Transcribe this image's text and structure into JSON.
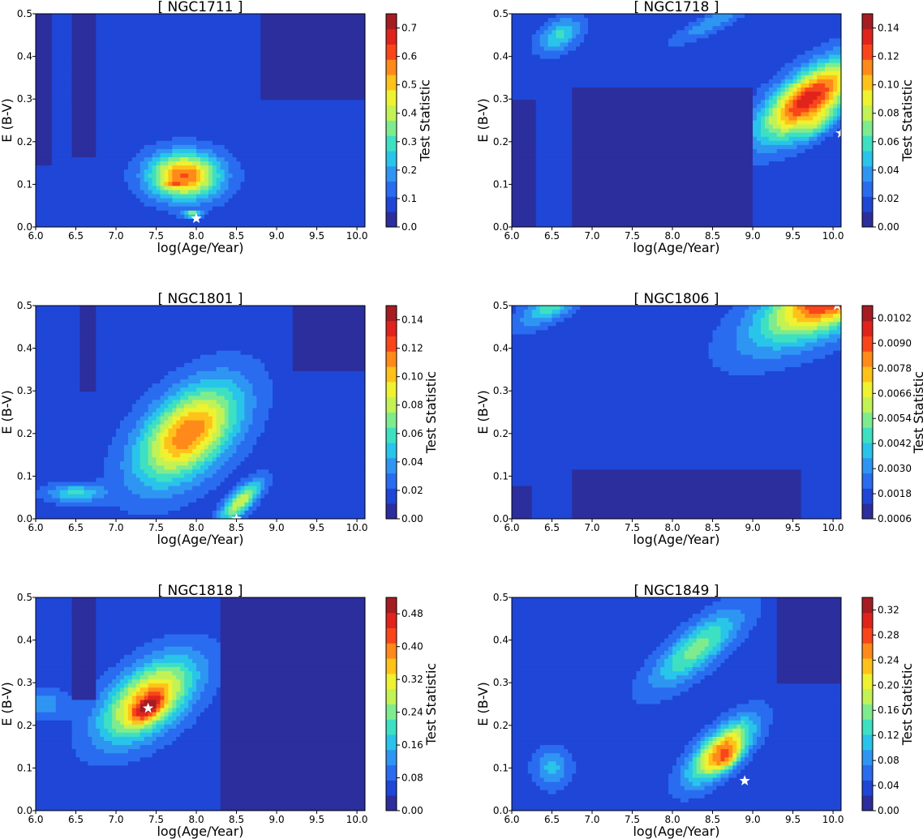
{
  "figure": {
    "common_xlabel": "log(Age/Year)",
    "common_ylabel": "E (B-V)",
    "colorbar_label": "Test Statistic"
  },
  "colormap": [
    "#2b2e9c",
    "#1f46d6",
    "#2a6cf0",
    "#2f95f2",
    "#29c4ea",
    "#3ee0c2",
    "#7eec8e",
    "#c3f255",
    "#eef230",
    "#ffc21a",
    "#ff8a1a",
    "#f8461a",
    "#e0241c",
    "#a51d22"
  ],
  "chart_data": [
    {
      "type": "heatmap",
      "title": "[ NGC1711 ]",
      "xlabel": "log(Age/Year)",
      "ylabel": "E (B-V)",
      "colorbar_label": "Test Statistic",
      "xlim": [
        6.0,
        10.1
      ],
      "ylim": [
        0.0,
        0.5
      ],
      "xticks": [
        6.0,
        6.5,
        7.0,
        7.5,
        8.0,
        8.5,
        9.0,
        9.5,
        10.0
      ],
      "xtick_labels": [
        "6.0",
        "6.5",
        "7.0",
        "7.5",
        "8.0",
        "8.5",
        "9.0",
        "9.5",
        "10.0"
      ],
      "yticks": [
        0.0,
        0.1,
        0.2,
        0.3,
        0.4,
        0.5
      ],
      "ytick_labels": [
        "0.0",
        "0.1",
        "0.2",
        "0.3",
        "0.4",
        "0.5"
      ],
      "cbar_ticks": [
        0.0,
        0.1,
        0.2,
        0.3,
        0.4,
        0.5,
        0.6,
        0.7
      ],
      "cbar_tick_labels": [
        "0.0",
        "0.1",
        "0.2",
        "0.3",
        "0.4",
        "0.5",
        "0.6",
        "0.7"
      ],
      "vmin": 0.0,
      "vmax": 0.75,
      "base_level": 1,
      "blobs": [
        {
          "x": 7.85,
          "y": 0.12,
          "sx": 0.3,
          "sy": 0.3,
          "angle": 60,
          "amp": 0.52
        },
        {
          "x": 7.95,
          "y": 0.03,
          "sx": 0.08,
          "sy": 0.04,
          "angle": 0,
          "amp": 0.3
        },
        {
          "x": 7.7,
          "y": 0.1,
          "sx": 0.08,
          "sy": 0.04,
          "angle": 0,
          "amp": 0.12
        }
      ],
      "dark_regions": [
        {
          "x0": 6.0,
          "x1": 6.2,
          "y0": 0.14,
          "y1": 0.5
        },
        {
          "x0": 6.45,
          "x1": 6.75,
          "y0": 0.16,
          "y1": 0.5
        },
        {
          "x0": 8.8,
          "x1": 10.1,
          "y0": 0.3,
          "y1": 0.5
        }
      ],
      "best_fit": {
        "x": 8.0,
        "y": 0.02
      }
    },
    {
      "type": "heatmap",
      "title": "[ NGC1718 ]",
      "xlabel": "log(Age/Year)",
      "ylabel": "E (B-V)",
      "colorbar_label": "Test Statistic",
      "xlim": [
        6.0,
        10.1
      ],
      "ylim": [
        0.0,
        0.5
      ],
      "xticks": [
        6.0,
        6.5,
        7.0,
        7.5,
        8.0,
        8.5,
        9.0,
        9.5,
        10.0
      ],
      "xtick_labels": [
        "6.0",
        "6.5",
        "7.0",
        "7.5",
        "8.0",
        "8.5",
        "9.0",
        "9.5",
        "10.0"
      ],
      "yticks": [
        0.0,
        0.1,
        0.2,
        0.3,
        0.4,
        0.5
      ],
      "ytick_labels": [
        "0.0",
        "0.1",
        "0.2",
        "0.3",
        "0.4",
        "0.5"
      ],
      "cbar_ticks": [
        0.0,
        0.02,
        0.04,
        0.06,
        0.08,
        0.1,
        0.12,
        0.14
      ],
      "cbar_tick_labels": [
        "0.00",
        "0.02",
        "0.04",
        "0.06",
        "0.08",
        "0.10",
        "0.12",
        "0.14"
      ],
      "vmin": 0.0,
      "vmax": 0.15,
      "base_level": 1,
      "blobs": [
        {
          "x": 9.7,
          "y": 0.3,
          "sx": 0.6,
          "sy": 0.25,
          "angle": 55,
          "amp": 0.12
        },
        {
          "x": 9.8,
          "y": 0.24,
          "sx": 0.25,
          "sy": 0.1,
          "angle": 55,
          "amp": 0.03
        },
        {
          "x": 6.6,
          "y": 0.45,
          "sx": 0.25,
          "sy": 0.15,
          "angle": 60,
          "amp": 0.04
        },
        {
          "x": 8.5,
          "y": 0.48,
          "sx": 0.4,
          "sy": 0.1,
          "angle": 40,
          "amp": 0.025
        }
      ],
      "dark_regions": [
        {
          "x0": 6.0,
          "x1": 6.3,
          "y0": 0.0,
          "y1": 0.3
        },
        {
          "x0": 6.75,
          "x1": 9.0,
          "y0": 0.0,
          "y1": 0.33
        }
      ],
      "best_fit": {
        "x": 10.1,
        "y": 0.22
      }
    },
    {
      "type": "heatmap",
      "title": "[ NGC1801 ]",
      "xlabel": "log(Age/Year)",
      "ylabel": "E (B-V)",
      "colorbar_label": "Test Statistic",
      "xlim": [
        6.0,
        10.1
      ],
      "ylim": [
        0.0,
        0.5
      ],
      "xticks": [
        6.0,
        6.5,
        7.0,
        7.5,
        8.0,
        8.5,
        9.0,
        9.5,
        10.0
      ],
      "xtick_labels": [
        "6.0",
        "6.5",
        "7.0",
        "7.5",
        "8.0",
        "8.5",
        "9.0",
        "9.5",
        "10.0"
      ],
      "yticks": [
        0.0,
        0.1,
        0.2,
        0.3,
        0.4,
        0.5
      ],
      "ytick_labels": [
        "0.0",
        "0.1",
        "0.2",
        "0.3",
        "0.4",
        "0.5"
      ],
      "cbar_ticks": [
        0.0,
        0.02,
        0.04,
        0.06,
        0.08,
        0.1,
        0.12,
        0.14
      ],
      "cbar_tick_labels": [
        "0.00",
        "0.02",
        "0.04",
        "0.06",
        "0.08",
        "0.10",
        "0.12",
        "0.14"
      ],
      "vmin": 0.0,
      "vmax": 0.15,
      "base_level": 1,
      "blobs": [
        {
          "x": 7.9,
          "y": 0.2,
          "sx": 0.7,
          "sy": 0.35,
          "angle": 65,
          "amp": 0.1
        },
        {
          "x": 8.55,
          "y": 0.04,
          "sx": 0.3,
          "sy": 0.1,
          "angle": 60,
          "amp": 0.07
        },
        {
          "x": 6.5,
          "y": 0.06,
          "sx": 0.25,
          "sy": 0.12,
          "angle": 0,
          "amp": 0.04
        }
      ],
      "dark_regions": [
        {
          "x0": 6.55,
          "x1": 6.75,
          "y0": 0.3,
          "y1": 0.5
        },
        {
          "x0": 9.2,
          "x1": 10.1,
          "y0": 0.35,
          "y1": 0.5
        }
      ],
      "best_fit": {
        "x": 8.5,
        "y": 0.0
      }
    },
    {
      "type": "heatmap",
      "title": "[ NGC1806 ]",
      "xlabel": "log(Age/Year)",
      "ylabel": "E (B-V)",
      "colorbar_label": "Test Statistic",
      "xlim": [
        6.0,
        10.1
      ],
      "ylim": [
        0.0,
        0.5
      ],
      "xticks": [
        6.0,
        6.5,
        7.0,
        7.5,
        8.0,
        8.5,
        9.0,
        9.5,
        10.0
      ],
      "xtick_labels": [
        "6.0",
        "6.5",
        "7.0",
        "7.5",
        "8.0",
        "8.5",
        "9.0",
        "9.5",
        "10.0"
      ],
      "yticks": [
        0.0,
        0.1,
        0.2,
        0.3,
        0.4,
        0.5
      ],
      "ytick_labels": [
        "0.0",
        "0.1",
        "0.2",
        "0.3",
        "0.4",
        "0.5"
      ],
      "cbar_ticks": [
        0.0006,
        0.0018,
        0.003,
        0.0042,
        0.0054,
        0.0066,
        0.0078,
        0.009,
        0.0102
      ],
      "cbar_tick_labels": [
        "0.0006",
        "0.0018",
        "0.0030",
        "0.0042",
        "0.0054",
        "0.0066",
        "0.0078",
        "0.0090",
        "0.0102"
      ],
      "vmin": 0.0006,
      "vmax": 0.0108,
      "base_level": 1,
      "blobs": [
        {
          "x": 10.2,
          "y": 0.55,
          "sx": 0.9,
          "sy": 0.35,
          "angle": 45,
          "amp": 0.0095
        },
        {
          "x": 6.5,
          "y": 0.5,
          "sx": 0.35,
          "sy": 0.15,
          "angle": 45,
          "amp": 0.003
        }
      ],
      "dark_regions": [
        {
          "x0": 6.75,
          "x1": 9.6,
          "y0": 0.0,
          "y1": 0.12
        },
        {
          "x0": 6.0,
          "x1": 6.25,
          "y0": 0.0,
          "y1": 0.08
        }
      ],
      "best_fit": {
        "x": 10.05,
        "y": 0.5
      }
    },
    {
      "type": "heatmap",
      "title": "[ NGC1818 ]",
      "xlabel": "log(Age/Year)",
      "ylabel": "E (B-V)",
      "colorbar_label": "Test Statistic",
      "xlim": [
        6.0,
        10.1
      ],
      "ylim": [
        0.0,
        0.5
      ],
      "xticks": [
        6.0,
        6.5,
        7.0,
        7.5,
        8.0,
        8.5,
        9.0,
        9.5,
        10.0
      ],
      "xtick_labels": [
        "6.0",
        "6.5",
        "7.0",
        "7.5",
        "8.0",
        "8.5",
        "9.0",
        "9.5",
        "10.0"
      ],
      "yticks": [
        0.0,
        0.1,
        0.2,
        0.3,
        0.4,
        0.5
      ],
      "ytick_labels": [
        "0.0",
        "0.1",
        "0.2",
        "0.3",
        "0.4",
        "0.5"
      ],
      "cbar_ticks": [
        0.0,
        0.08,
        0.16,
        0.24,
        0.32,
        0.4,
        0.48
      ],
      "cbar_tick_labels": [
        "0.00",
        "0.08",
        "0.16",
        "0.24",
        "0.32",
        "0.40",
        "0.48"
      ],
      "vmin": 0.0,
      "vmax": 0.52,
      "base_level": 1,
      "blobs": [
        {
          "x": 7.4,
          "y": 0.26,
          "sx": 0.6,
          "sy": 0.3,
          "angle": 60,
          "amp": 0.33
        },
        {
          "x": 7.4,
          "y": 0.24,
          "sx": 0.2,
          "sy": 0.1,
          "angle": 60,
          "amp": 0.17
        },
        {
          "x": 6.1,
          "y": 0.25,
          "sx": 0.2,
          "sy": 0.2,
          "angle": 90,
          "amp": 0.08
        }
      ],
      "dark_regions": [
        {
          "x0": 6.45,
          "x1": 6.75,
          "y0": 0.26,
          "y1": 0.5
        },
        {
          "x0": 8.3,
          "x1": 10.1,
          "y0": 0.0,
          "y1": 0.5
        }
      ],
      "best_fit": {
        "x": 7.4,
        "y": 0.24
      }
    },
    {
      "type": "heatmap",
      "title": "[ NGC1849 ]",
      "xlabel": "log(Age/Year)",
      "ylabel": "E (B-V)",
      "colorbar_label": "Test Statistic",
      "xlim": [
        6.0,
        10.1
      ],
      "ylim": [
        0.0,
        0.5
      ],
      "xticks": [
        6.0,
        6.5,
        7.0,
        7.5,
        8.0,
        8.5,
        9.0,
        9.5,
        10.0
      ],
      "xtick_labels": [
        "6.0",
        "6.5",
        "7.0",
        "7.5",
        "8.0",
        "8.5",
        "9.0",
        "9.5",
        "10.0"
      ],
      "yticks": [
        0.0,
        0.1,
        0.2,
        0.3,
        0.4,
        0.5
      ],
      "ytick_labels": [
        "0.0",
        "0.1",
        "0.2",
        "0.3",
        "0.4",
        "0.5"
      ],
      "cbar_ticks": [
        0.0,
        0.04,
        0.08,
        0.12,
        0.16,
        0.2,
        0.24,
        0.28,
        0.32
      ],
      "cbar_tick_labels": [
        "0.00",
        "0.04",
        "0.08",
        "0.12",
        "0.16",
        "0.20",
        "0.24",
        "0.28",
        "0.32"
      ],
      "vmin": 0.0,
      "vmax": 0.34,
      "base_level": 1,
      "blobs": [
        {
          "x": 8.6,
          "y": 0.14,
          "sx": 0.45,
          "sy": 0.17,
          "angle": 60,
          "amp": 0.22
        },
        {
          "x": 8.3,
          "y": 0.38,
          "sx": 0.6,
          "sy": 0.2,
          "angle": 55,
          "amp": 0.12
        },
        {
          "x": 8.7,
          "y": 0.12,
          "sx": 0.18,
          "sy": 0.08,
          "angle": 60,
          "amp": 0.08
        },
        {
          "x": 6.5,
          "y": 0.1,
          "sx": 0.25,
          "sy": 0.15,
          "angle": 90,
          "amp": 0.07
        }
      ],
      "dark_regions": [
        {
          "x0": 9.3,
          "x1": 10.1,
          "y0": 0.3,
          "y1": 0.5
        }
      ],
      "best_fit": {
        "x": 8.9,
        "y": 0.07
      }
    }
  ]
}
